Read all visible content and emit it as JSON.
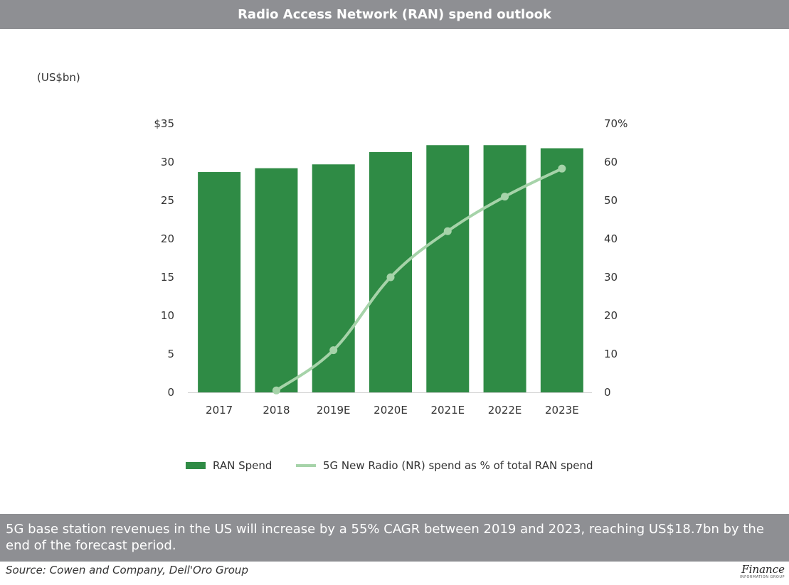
{
  "header": {
    "title": "Radio Access Network (RAN) spend outlook"
  },
  "unit_label": "(US$bn)",
  "legend": {
    "bar_label": "RAN Spend",
    "line_label": "5G New Radio (NR) spend as % of total RAN spend"
  },
  "caption": "5G base station revenues in the US will increase by a 55% CAGR between 2019 and 2023, reaching US$18.7bn by the end of the forecast period.",
  "source": "Source: Cowen and Company, Dell'Oro Group",
  "logo": {
    "main": "Finance",
    "sub": "INFORMATION GROUP"
  },
  "colors": {
    "header_bg": "#8e8f93",
    "bar": "#2f8b45",
    "line": "#a6d3a9"
  },
  "chart_data": {
    "type": "bar",
    "title": "Radio Access Network (RAN) spend outlook",
    "categories": [
      "2017",
      "2018",
      "2019E",
      "2020E",
      "2021E",
      "2022E",
      "2023E"
    ],
    "series": [
      {
        "name": "RAN Spend",
        "type": "bar",
        "axis": "left",
        "values": [
          28.7,
          29.2,
          29.7,
          31.3,
          32.2,
          32.2,
          31.8
        ]
      },
      {
        "name": "5G New Radio (NR) spend as % of total RAN spend",
        "type": "line",
        "axis": "right",
        "values": [
          null,
          0.5,
          11,
          30,
          42,
          51,
          58.3
        ]
      }
    ],
    "left_axis": {
      "ylim": [
        0,
        35
      ],
      "ticks": [
        "0",
        "5",
        "10",
        "15",
        "20",
        "25",
        "30",
        "$35"
      ],
      "tick_values": [
        0,
        5,
        10,
        15,
        20,
        25,
        30,
        35
      ]
    },
    "right_axis": {
      "ylim": [
        0,
        70
      ],
      "ticks": [
        "0",
        "10",
        "20",
        "30",
        "40",
        "50",
        "60",
        "70%"
      ],
      "tick_values": [
        0,
        10,
        20,
        30,
        40,
        50,
        60,
        70
      ]
    },
    "grid": false,
    "legend_position": "bottom"
  }
}
